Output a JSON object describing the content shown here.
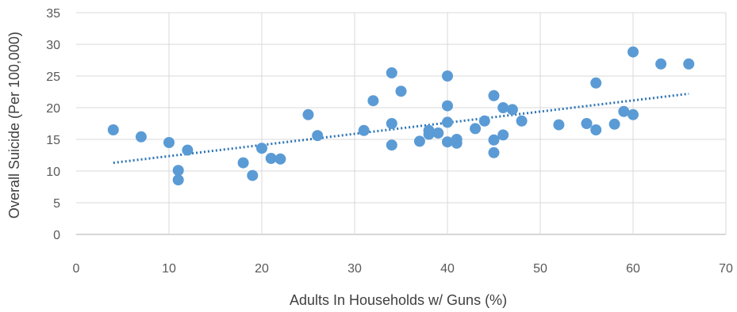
{
  "chart_data": {
    "type": "scatter",
    "title": "",
    "xlabel": "Adults In Households w/ Guns (%)",
    "ylabel": "Overall Suicide (Per 100,000)",
    "xlim": [
      0,
      70
    ],
    "ylim": [
      0,
      35
    ],
    "x_ticks": [
      "0",
      "10",
      "20",
      "30",
      "40",
      "50",
      "60",
      "70"
    ],
    "y_ticks": [
      "0",
      "5",
      "10",
      "15",
      "20",
      "25",
      "30",
      "35"
    ],
    "grid": "vertical and horizontal",
    "legend": "none",
    "marker_color": "#5b9bd5",
    "trendline": {
      "type": "linear",
      "style": "dotted",
      "color": "#2e75b6",
      "x": [
        4,
        66
      ],
      "y": [
        11.3,
        22.2
      ]
    },
    "series": [
      {
        "points": [
          [
            4,
            16.5
          ],
          [
            7,
            15.4
          ],
          [
            10,
            14.5
          ],
          [
            11,
            10.1
          ],
          [
            11,
            8.6
          ],
          [
            12,
            13.3
          ],
          [
            18,
            11.3
          ],
          [
            19,
            9.3
          ],
          [
            20,
            13.6
          ],
          [
            21,
            12.0
          ],
          [
            22,
            11.9
          ],
          [
            25,
            18.9
          ],
          [
            26,
            15.6
          ],
          [
            31,
            16.4
          ],
          [
            32,
            21.1
          ],
          [
            34,
            25.5
          ],
          [
            34,
            17.5
          ],
          [
            34,
            14.1
          ],
          [
            35,
            22.6
          ],
          [
            37,
            14.7
          ],
          [
            38,
            16.4
          ],
          [
            38,
            15.8
          ],
          [
            39,
            16.0
          ],
          [
            40,
            25.0
          ],
          [
            40,
            20.3
          ],
          [
            40,
            17.7
          ],
          [
            40,
            14.6
          ],
          [
            41,
            15.0
          ],
          [
            41,
            14.4
          ],
          [
            43,
            16.7
          ],
          [
            44,
            17.9
          ],
          [
            45,
            21.9
          ],
          [
            45,
            14.9
          ],
          [
            45,
            12.9
          ],
          [
            46,
            20.0
          ],
          [
            46,
            15.7
          ],
          [
            47,
            19.7
          ],
          [
            48,
            17.9
          ],
          [
            52,
            17.3
          ],
          [
            55,
            17.5
          ],
          [
            56,
            23.9
          ],
          [
            56,
            16.5
          ],
          [
            58,
            17.4
          ],
          [
            59,
            19.4
          ],
          [
            60,
            28.8
          ],
          [
            60,
            18.9
          ],
          [
            63,
            26.9
          ],
          [
            66,
            26.9
          ]
        ]
      }
    ]
  }
}
